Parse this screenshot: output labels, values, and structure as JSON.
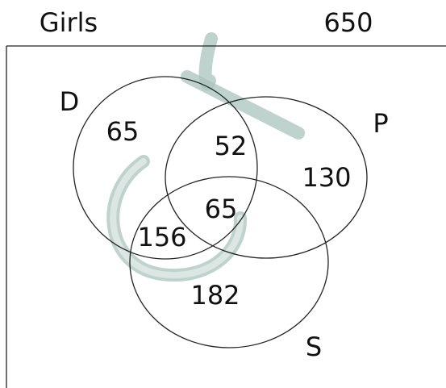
{
  "header": {
    "title": "Girls",
    "total": 650
  },
  "sets": [
    {
      "label": "D"
    },
    {
      "label": "P"
    },
    {
      "label": "S"
    }
  ],
  "regions": [
    {
      "sets": "D only",
      "value": 65
    },
    {
      "sets": "D and P",
      "value": 52
    },
    {
      "sets": "P only",
      "value": 130
    },
    {
      "sets": "D, P and S",
      "value": 65
    },
    {
      "sets": "D and S",
      "value": 156
    },
    {
      "sets": "S only",
      "value": 182
    }
  ]
}
